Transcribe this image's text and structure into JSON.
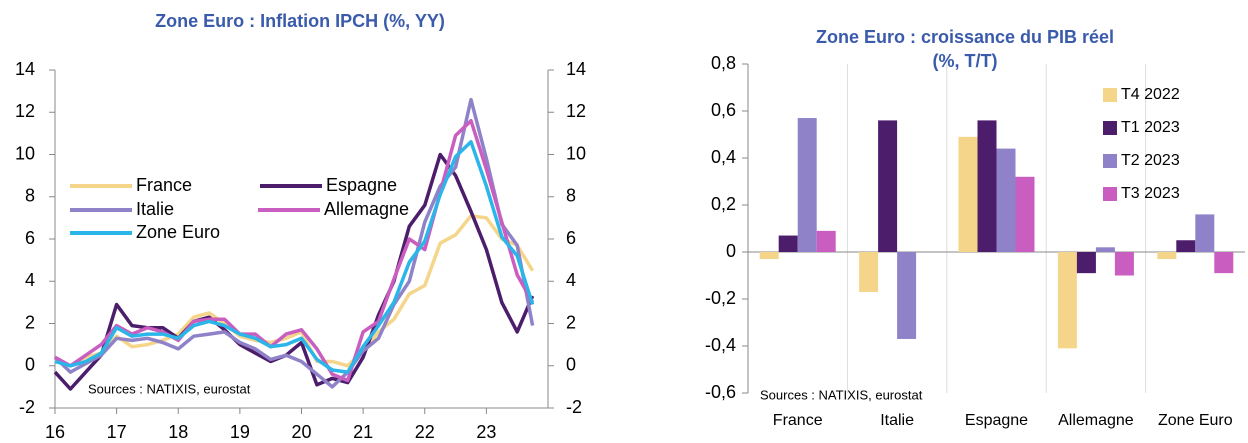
{
  "chart_data": [
    {
      "type": "line",
      "title": "Zone Euro : Inflation IPCH (%, YY)",
      "annotation": "Sources : NATIXIS, eurostat",
      "x": [
        2016,
        2016.25,
        2016.5,
        2016.75,
        2017,
        2017.25,
        2017.5,
        2017.75,
        2018,
        2018.25,
        2018.5,
        2018.75,
        2019,
        2019.25,
        2019.5,
        2019.75,
        2020,
        2020.25,
        2020.5,
        2020.75,
        2021,
        2021.25,
        2021.5,
        2021.75,
        2022,
        2022.25,
        2022.5,
        2022.75,
        2023,
        2023.25,
        2023.5,
        2023.75
      ],
      "series": [
        {
          "name": "France",
          "color": "#f5d58a",
          "values": [
            0.3,
            0,
            0.4,
            0.6,
            1.4,
            0.9,
            1.0,
            1.2,
            1.5,
            2.3,
            2.5,
            2.0,
            1.4,
            1.2,
            1.1,
            1.3,
            1.6,
            0.2,
            0.2,
            0.0,
            0.7,
            1.6,
            2.2,
            3.4,
            3.8,
            5.8,
            6.2,
            7.1,
            7.0,
            6.0,
            5.7,
            4.5
          ]
        },
        {
          "name": "Espagne",
          "color": "#4b1d6b",
          "values": [
            -0.3,
            -1.1,
            -0.3,
            0.5,
            2.9,
            1.9,
            1.8,
            1.8,
            1.3,
            2.1,
            2.3,
            1.7,
            1.0,
            0.6,
            0.2,
            0.5,
            1.1,
            -0.9,
            -0.6,
            -0.8,
            0.4,
            2.4,
            4.0,
            6.6,
            7.6,
            10.0,
            9.0,
            7.3,
            5.5,
            3.0,
            1.6,
            3.3
          ]
        },
        {
          "name": "Italie",
          "color": "#8f82c9",
          "values": [
            0.4,
            -0.3,
            0.1,
            0.5,
            1.3,
            1.2,
            1.3,
            1.1,
            0.8,
            1.4,
            1.5,
            1.6,
            1.1,
            0.8,
            0.3,
            0.5,
            0.2,
            -0.4,
            -1.0,
            -0.3,
            0.7,
            1.3,
            2.9,
            4.0,
            6.8,
            8.5,
            9.4,
            12.6,
            9.8,
            6.7,
            5.7,
            1.9
          ]
        },
        {
          "name": "Allemagne",
          "color": "#c95ec0",
          "values": [
            0.4,
            0.0,
            0.5,
            1.0,
            1.9,
            1.5,
            1.8,
            1.6,
            1.2,
            2.1,
            2.2,
            2.2,
            1.5,
            1.5,
            0.9,
            1.5,
            1.7,
            0.8,
            -0.4,
            -0.7,
            1.6,
            2.1,
            4.1,
            6.0,
            5.5,
            8.2,
            10.9,
            11.6,
            9.3,
            6.8,
            4.3,
            3.0
          ]
        },
        {
          "name": "Zone Euro",
          "color": "#2bb5e8",
          "values": [
            0.2,
            0,
            0.2,
            0.6,
            1.8,
            1.4,
            1.5,
            1.5,
            1.3,
            1.9,
            2.1,
            1.9,
            1.5,
            1.3,
            0.9,
            1.0,
            1.3,
            0.3,
            -0.2,
            -0.3,
            0.9,
            1.9,
            3.0,
            4.9,
            5.9,
            8.1,
            9.9,
            10.6,
            8.5,
            6.1,
            5.2,
            2.9
          ]
        }
      ],
      "xlim": [
        2016,
        2024
      ],
      "xticks": [
        {
          "value": 2016,
          "label": "16"
        },
        {
          "value": 2017,
          "label": "17"
        },
        {
          "value": 2018,
          "label": "18"
        },
        {
          "value": 2019,
          "label": "19"
        },
        {
          "value": 2020,
          "label": "20"
        },
        {
          "value": 2021,
          "label": "21"
        },
        {
          "value": 2022,
          "label": "22"
        },
        {
          "value": 2023,
          "label": "23"
        }
      ],
      "ylim": [
        -2,
        14
      ],
      "yticks": [
        -2,
        0,
        2,
        4,
        6,
        8,
        10,
        12,
        14
      ],
      "y2lim": [
        -2,
        14
      ],
      "y2ticks": [
        -2,
        0,
        2,
        4,
        6,
        8,
        10,
        12,
        14
      ]
    },
    {
      "type": "bar",
      "title": "Zone Euro : croissance du PIB réel",
      "subtitle": "(%, T/T)",
      "annotation": "Sources : NATIXIS, eurostat",
      "categories": [
        "France",
        "Italie",
        "Espagne",
        "Allemagne",
        "Zone Euro"
      ],
      "series": [
        {
          "name": "T4 2022",
          "color": "#f5d58a",
          "values": [
            -0.03,
            -0.17,
            0.49,
            -0.41,
            -0.03
          ]
        },
        {
          "name": "T1 2023",
          "color": "#4b1d6b",
          "values": [
            0.07,
            0.56,
            0.56,
            -0.09,
            0.05
          ]
        },
        {
          "name": "T2 2023",
          "color": "#8f82c9",
          "values": [
            0.57,
            -0.37,
            0.44,
            0.02,
            0.16
          ]
        },
        {
          "name": "T3 2023",
          "color": "#c95ec0",
          "values": [
            0.09,
            0,
            0.32,
            -0.1,
            -0.09
          ]
        }
      ],
      "ylim": [
        -0.6,
        0.8
      ],
      "yticks": [
        {
          "value": -0.6,
          "label": "-0,6"
        },
        {
          "value": -0.4,
          "label": "-0,4"
        },
        {
          "value": -0.2,
          "label": "-0,2"
        },
        0,
        {
          "value": 0.2,
          "label": "0,2"
        },
        {
          "value": 0.4,
          "label": "0,4"
        },
        {
          "value": 0.6,
          "label": "0,6"
        },
        {
          "value": 0.8,
          "label": "0,8"
        }
      ]
    }
  ]
}
